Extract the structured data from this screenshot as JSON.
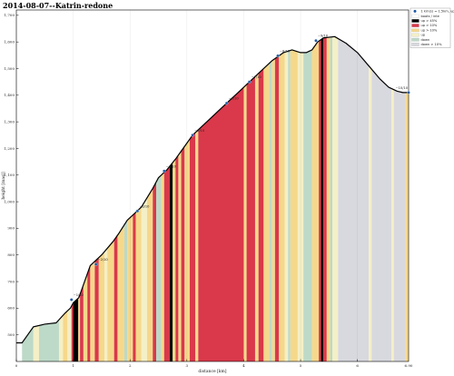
{
  "title": "2014-08-07--Katrin-redone",
  "chart_data": {
    "type": "area",
    "title": "2014-08-07--Katrin-redone",
    "xlabel": "distance [km]",
    "ylabel": "height [masl]",
    "xlim": [
      0,
      6.9
    ],
    "ylim": [
      400,
      1720
    ],
    "xticks": [
      0,
      1,
      2,
      3,
      4,
      5,
      6
    ],
    "xtick_labels": [
      "0",
      "1",
      "2",
      "3",
      "4",
      "5",
      "6"
    ],
    "xend_label": "6.90",
    "yticks": [
      500,
      600,
      700,
      800,
      900,
      1000,
      1100,
      1200,
      1300,
      1400,
      1500,
      1600,
      1700
    ],
    "ytick_labels": [
      "500",
      "600",
      "700",
      "800",
      "900",
      "1,000",
      "1,100",
      "1,200",
      "1,300",
      "1,400",
      "1,500",
      "1,600",
      "1,700"
    ],
    "profile": {
      "x": [
        0,
        0.1,
        0.2,
        0.3,
        0.5,
        0.7,
        0.85,
        0.95,
        1.0,
        1.1,
        1.2,
        1.3,
        1.5,
        1.7,
        1.8,
        1.95,
        2.1,
        2.2,
        2.4,
        2.5,
        2.65,
        2.8,
        2.9,
        3.0,
        3.1,
        3.3,
        3.5,
        3.7,
        3.9,
        4.1,
        4.3,
        4.5,
        4.7,
        4.85,
        5.0,
        5.1,
        5.2,
        5.3,
        5.4,
        5.6,
        5.8,
        6.0,
        6.2,
        6.4,
        6.55,
        6.7,
        6.8,
        6.9
      ],
      "y": [
        470,
        470,
        500,
        530,
        540,
        545,
        580,
        600,
        620,
        640,
        700,
        760,
        800,
        850,
        880,
        930,
        960,
        980,
        1050,
        1090,
        1120,
        1160,
        1190,
        1220,
        1250,
        1290,
        1330,
        1370,
        1410,
        1450,
        1490,
        1530,
        1560,
        1570,
        1560,
        1560,
        1570,
        1600,
        1615,
        1620,
        1595,
        1560,
        1510,
        1460,
        1430,
        1415,
        1410,
        1410
      ]
    },
    "waypoints": [
      {
        "x": 0.97,
        "y": 632,
        "label": "~1/10"
      },
      {
        "x": 1.4,
        "y": 765,
        "label": "~2/10"
      },
      {
        "x": 2.13,
        "y": 965,
        "label": "~3/10"
      },
      {
        "x": 2.6,
        "y": 1115,
        "label": "~4/10"
      },
      {
        "x": 3.1,
        "y": 1250,
        "label": "~5/10"
      },
      {
        "x": 3.7,
        "y": 1370,
        "label": "~6/10"
      },
      {
        "x": 4.1,
        "y": 1450,
        "label": "~7/10"
      },
      {
        "x": 4.6,
        "y": 1548,
        "label": "~8/10"
      },
      {
        "x": 5.27,
        "y": 1605,
        "label": "~9/10"
      },
      {
        "x": 6.9,
        "y": 1410,
        "label": "~10/10"
      }
    ],
    "legend": {
      "position": "top-right",
      "entries": [
        {
          "label": "1 km(s) = 1.5km, up",
          "color": "#1c5aa6",
          "marker": true
        },
        {
          "label": "boots / inte",
          "color": "#ffffff"
        },
        {
          "label": "up > 45%",
          "color": "#000000"
        },
        {
          "label": "up > 10%",
          "color": "#d9394a"
        },
        {
          "label": "up > 10%",
          "color": "#f6d88b"
        },
        {
          "label": "up",
          "color": "#f4efc6"
        },
        {
          "label": "down",
          "color": "#bdd9c8"
        },
        {
          "label": "down > 10%",
          "color": "#d8d8df"
        }
      ]
    },
    "colors": {
      "black": "#000000",
      "red": "#d9394a",
      "yellow": "#f6d88b",
      "cream": "#f4efc6",
      "green": "#bdd9c8",
      "grey": "#d8d8df",
      "white": "#ffffff",
      "marker": "#1c5aa6"
    },
    "segments": [
      {
        "x0": 0.0,
        "x1": 0.1,
        "c": "white"
      },
      {
        "x0": 0.1,
        "x1": 0.3,
        "c": "green"
      },
      {
        "x0": 0.3,
        "x1": 0.4,
        "c": "cream"
      },
      {
        "x0": 0.4,
        "x1": 0.75,
        "c": "green"
      },
      {
        "x0": 0.75,
        "x1": 0.82,
        "c": "cream"
      },
      {
        "x0": 0.82,
        "x1": 0.9,
        "c": "yellow"
      },
      {
        "x0": 0.9,
        "x1": 0.97,
        "c": "cream"
      },
      {
        "x0": 0.97,
        "x1": 1.0,
        "c": "red"
      },
      {
        "x0": 1.0,
        "x1": 1.09,
        "c": "black"
      },
      {
        "x0": 1.09,
        "x1": 1.12,
        "c": "yellow"
      },
      {
        "x0": 1.12,
        "x1": 1.18,
        "c": "red"
      },
      {
        "x0": 1.18,
        "x1": 1.25,
        "c": "yellow"
      },
      {
        "x0": 1.25,
        "x1": 1.3,
        "c": "red"
      },
      {
        "x0": 1.3,
        "x1": 1.38,
        "c": "yellow"
      },
      {
        "x0": 1.38,
        "x1": 1.45,
        "c": "red"
      },
      {
        "x0": 1.45,
        "x1": 1.55,
        "c": "yellow"
      },
      {
        "x0": 1.55,
        "x1": 1.6,
        "c": "cream"
      },
      {
        "x0": 1.6,
        "x1": 1.72,
        "c": "yellow"
      },
      {
        "x0": 1.72,
        "x1": 1.78,
        "c": "red"
      },
      {
        "x0": 1.78,
        "x1": 1.9,
        "c": "yellow"
      },
      {
        "x0": 1.9,
        "x1": 1.95,
        "c": "green"
      },
      {
        "x0": 1.95,
        "x1": 2.05,
        "c": "yellow"
      },
      {
        "x0": 2.05,
        "x1": 2.1,
        "c": "red"
      },
      {
        "x0": 2.1,
        "x1": 2.2,
        "c": "yellow"
      },
      {
        "x0": 2.2,
        "x1": 2.3,
        "c": "cream"
      },
      {
        "x0": 2.3,
        "x1": 2.4,
        "c": "yellow"
      },
      {
        "x0": 2.4,
        "x1": 2.46,
        "c": "red"
      },
      {
        "x0": 2.46,
        "x1": 2.55,
        "c": "green"
      },
      {
        "x0": 2.55,
        "x1": 2.6,
        "c": "yellow"
      },
      {
        "x0": 2.6,
        "x1": 2.7,
        "c": "red"
      },
      {
        "x0": 2.7,
        "x1": 2.75,
        "c": "black"
      },
      {
        "x0": 2.75,
        "x1": 2.8,
        "c": "yellow"
      },
      {
        "x0": 2.8,
        "x1": 2.85,
        "c": "red"
      },
      {
        "x0": 2.85,
        "x1": 2.9,
        "c": "yellow"
      },
      {
        "x0": 2.9,
        "x1": 2.96,
        "c": "red"
      },
      {
        "x0": 2.96,
        "x1": 3.05,
        "c": "yellow"
      },
      {
        "x0": 3.05,
        "x1": 3.15,
        "c": "red"
      },
      {
        "x0": 3.15,
        "x1": 3.2,
        "c": "yellow"
      },
      {
        "x0": 3.2,
        "x1": 4.0,
        "c": "red"
      },
      {
        "x0": 4.0,
        "x1": 4.05,
        "c": "yellow"
      },
      {
        "x0": 4.05,
        "x1": 4.2,
        "c": "red"
      },
      {
        "x0": 4.2,
        "x1": 4.26,
        "c": "yellow"
      },
      {
        "x0": 4.26,
        "x1": 4.35,
        "c": "red"
      },
      {
        "x0": 4.35,
        "x1": 4.45,
        "c": "yellow"
      },
      {
        "x0": 4.45,
        "x1": 4.5,
        "c": "green"
      },
      {
        "x0": 4.5,
        "x1": 4.55,
        "c": "yellow"
      },
      {
        "x0": 4.55,
        "x1": 4.62,
        "c": "red"
      },
      {
        "x0": 4.62,
        "x1": 4.72,
        "c": "yellow"
      },
      {
        "x0": 4.72,
        "x1": 4.78,
        "c": "cream"
      },
      {
        "x0": 4.78,
        "x1": 4.82,
        "c": "green"
      },
      {
        "x0": 4.82,
        "x1": 4.95,
        "c": "yellow"
      },
      {
        "x0": 4.95,
        "x1": 5.05,
        "c": "cream"
      },
      {
        "x0": 5.05,
        "x1": 5.2,
        "c": "green"
      },
      {
        "x0": 5.2,
        "x1": 5.32,
        "c": "yellow"
      },
      {
        "x0": 5.32,
        "x1": 5.36,
        "c": "red"
      },
      {
        "x0": 5.36,
        "x1": 5.4,
        "c": "black"
      },
      {
        "x0": 5.4,
        "x1": 5.46,
        "c": "red"
      },
      {
        "x0": 5.46,
        "x1": 5.52,
        "c": "yellow"
      },
      {
        "x0": 5.52,
        "x1": 5.56,
        "c": "green"
      },
      {
        "x0": 5.56,
        "x1": 5.66,
        "c": "cream"
      },
      {
        "x0": 5.66,
        "x1": 6.2,
        "c": "grey"
      },
      {
        "x0": 6.2,
        "x1": 6.25,
        "c": "cream"
      },
      {
        "x0": 6.25,
        "x1": 6.6,
        "c": "grey"
      },
      {
        "x0": 6.6,
        "x1": 6.64,
        "c": "cream"
      },
      {
        "x0": 6.64,
        "x1": 6.84,
        "c": "grey"
      },
      {
        "x0": 6.84,
        "x1": 6.9,
        "c": "yellow"
      }
    ]
  }
}
